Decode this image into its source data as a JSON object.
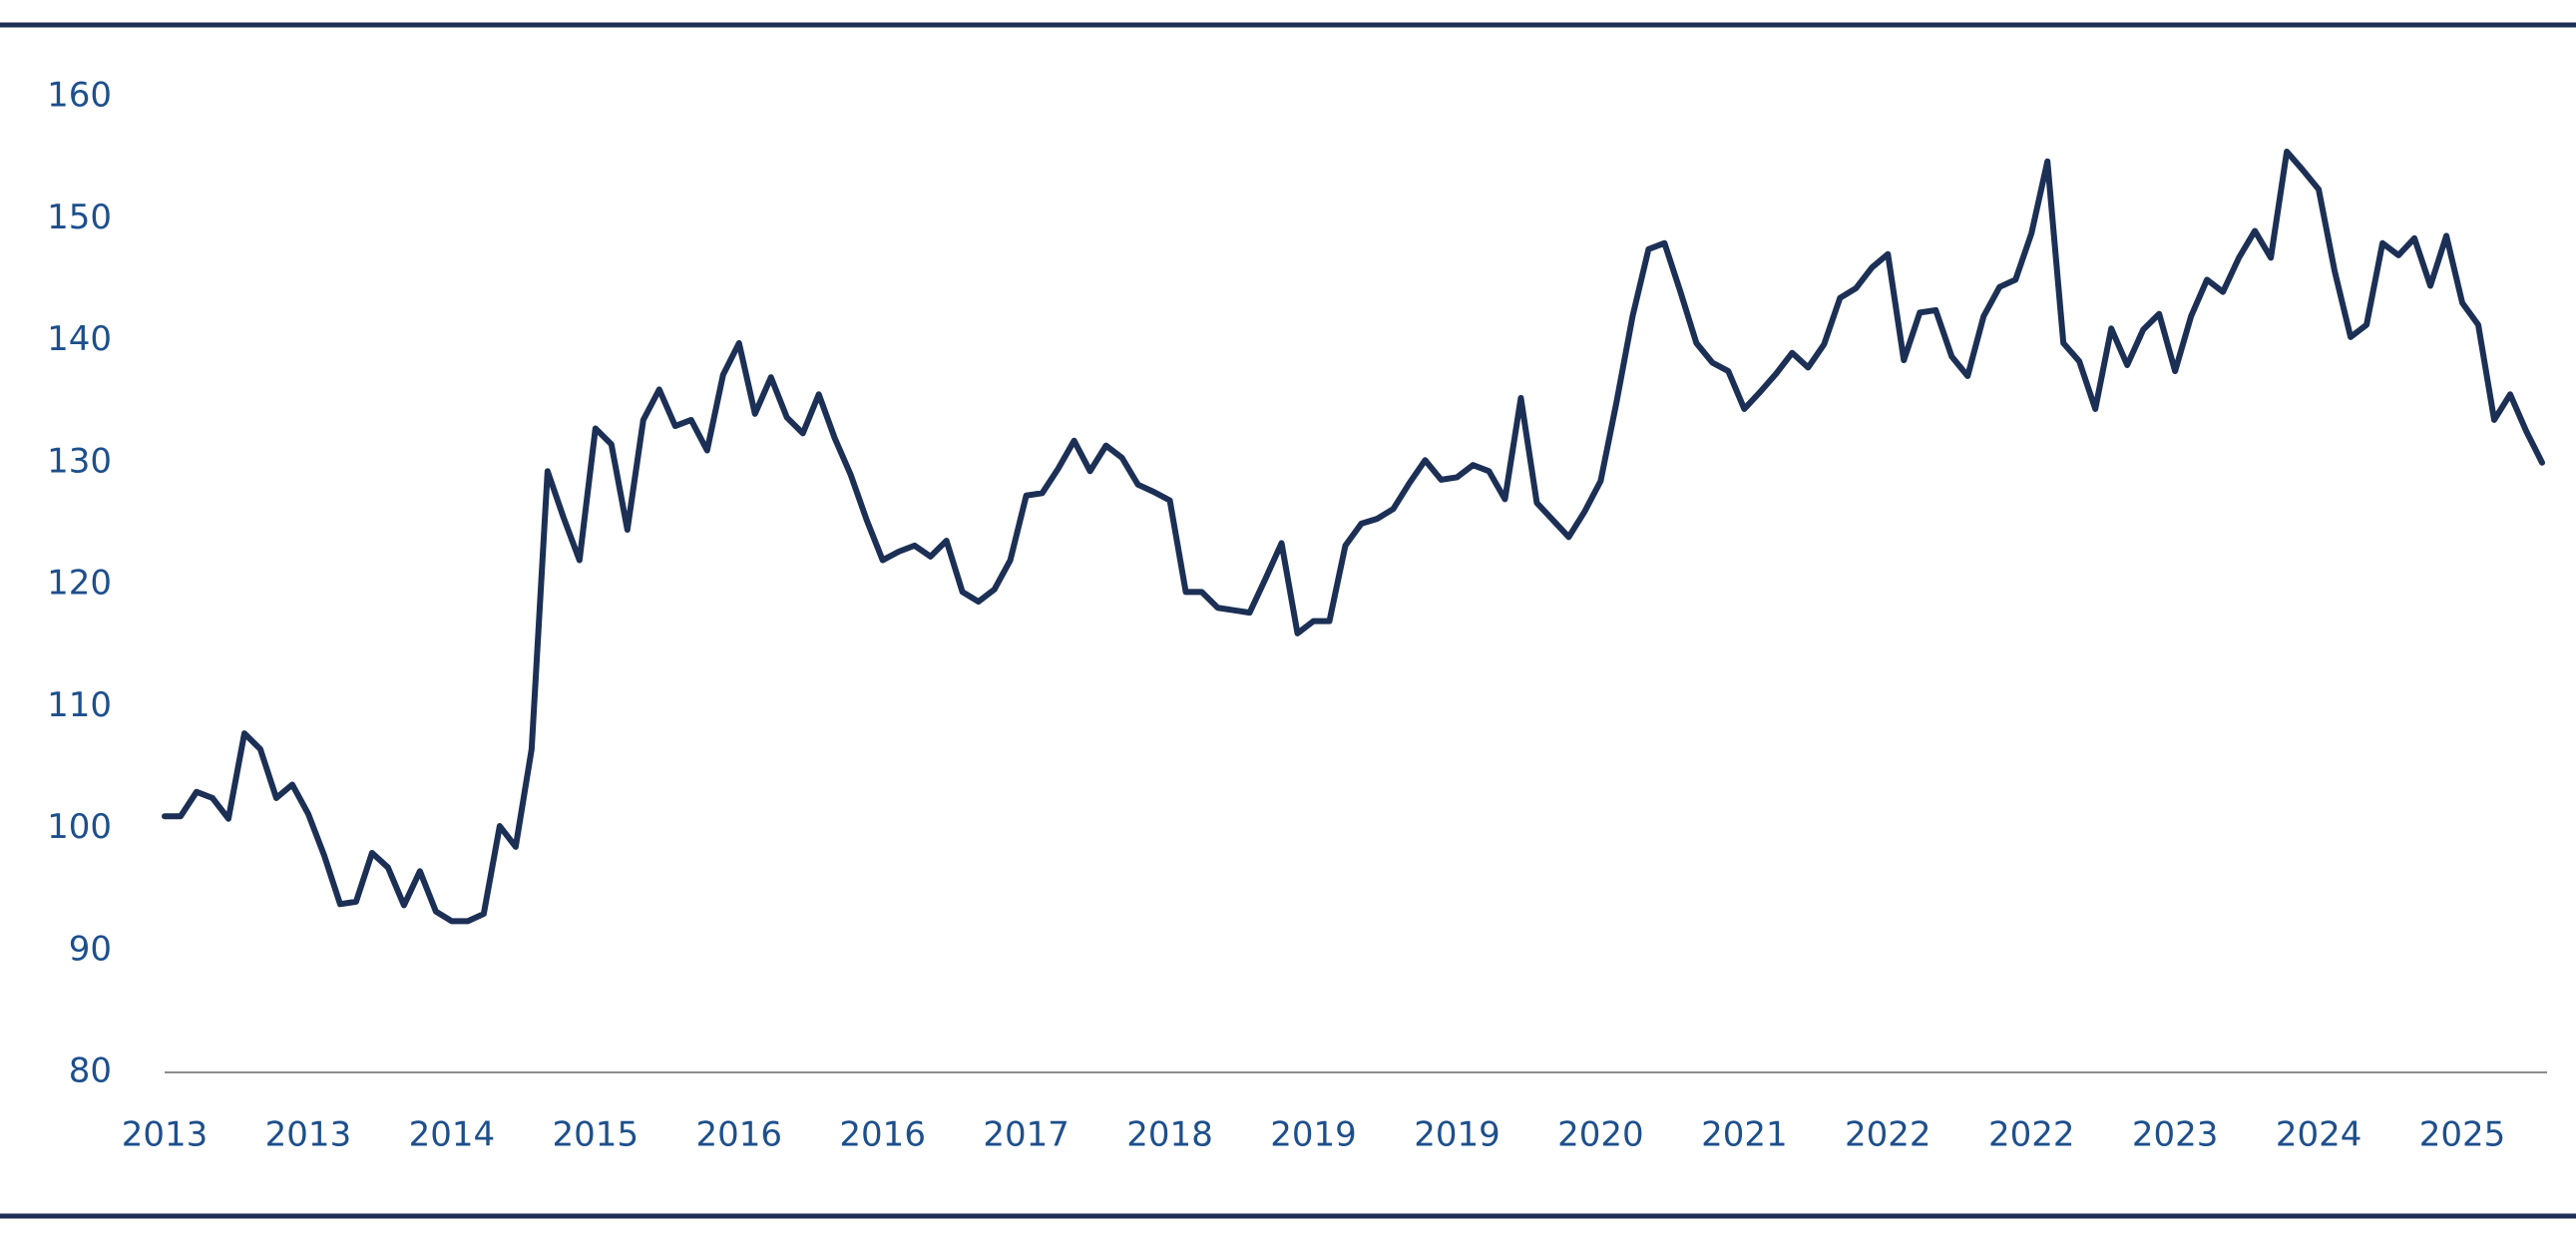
{
  "chart_data": {
    "type": "line",
    "categories": [
      "2013",
      null,
      null,
      null,
      null,
      null,
      null,
      null,
      null,
      "2013",
      null,
      null,
      null,
      null,
      null,
      null,
      null,
      null,
      "2014",
      null,
      null,
      null,
      null,
      null,
      null,
      null,
      null,
      "2015",
      null,
      null,
      null,
      null,
      null,
      null,
      null,
      null,
      "2016",
      null,
      null,
      null,
      null,
      null,
      null,
      null,
      null,
      "2016",
      null,
      null,
      null,
      null,
      null,
      null,
      null,
      null,
      "2017",
      null,
      null,
      null,
      null,
      null,
      null,
      null,
      null,
      "2018",
      null,
      null,
      null,
      null,
      null,
      null,
      null,
      null,
      "2019",
      null,
      null,
      null,
      null,
      null,
      null,
      null,
      null,
      "2019",
      null,
      null,
      null,
      null,
      null,
      null,
      null,
      null,
      "2020",
      null,
      null,
      null,
      null,
      null,
      null,
      null,
      null,
      "2021",
      null,
      null,
      null,
      null,
      null,
      null,
      null,
      null,
      "2022",
      null,
      null,
      null,
      null,
      null,
      null,
      null,
      null,
      "2022",
      null,
      null,
      null,
      null,
      null,
      null,
      null,
      null,
      "2023",
      null,
      null,
      null,
      null,
      null,
      null,
      null,
      null,
      "2024",
      null,
      null,
      null,
      null,
      null,
      null,
      null,
      null,
      "2025",
      null,
      null,
      null,
      null,
      null
    ],
    "values": [
      101,
      101,
      103,
      102.5,
      100.8,
      107.8,
      106.5,
      102.5,
      103.6,
      101.2,
      97.8,
      93.8,
      94,
      98,
      96.8,
      93.7,
      96.5,
      93.2,
      92.4,
      92.4,
      93,
      100.2,
      98.5,
      106.5,
      129.3,
      125.5,
      122,
      132.8,
      131.5,
      124.5,
      133.5,
      136,
      133,
      133.5,
      131,
      137.2,
      139.8,
      134,
      137,
      133.7,
      132.4,
      135.6,
      132,
      129,
      125.3,
      122,
      122.7,
      123.2,
      122.3,
      123.6,
      119.4,
      118.6,
      119.6,
      122,
      127.3,
      127.5,
      129.5,
      131.8,
      129.3,
      131.4,
      130.4,
      128.2,
      127.6,
      126.9,
      119.4,
      119.4,
      118.1,
      117.9,
      117.7,
      120.5,
      123.4,
      116,
      117,
      117,
      123.2,
      125,
      125.4,
      126.2,
      128.3,
      130.2,
      128.6,
      128.8,
      129.8,
      129.3,
      127,
      135.3,
      126.7,
      125.3,
      123.9,
      126,
      128.5,
      135,
      142,
      147.5,
      148,
      144,
      139.8,
      138.2,
      137.5,
      134.4,
      135.8,
      137.3,
      139,
      137.8,
      139.7,
      143.5,
      144.3,
      146,
      147.1,
      138.4,
      142.3,
      142.5,
      138.7,
      137.1,
      142,
      144.4,
      145,
      148.8,
      154.7,
      139.8,
      138.3,
      134.4,
      141,
      138,
      140.9,
      142.2,
      137.5,
      142,
      145,
      144,
      146.8,
      149,
      146.8,
      155.5,
      154,
      152.4,
      145.7,
      140.3,
      141.3,
      148,
      147,
      148.4,
      144.5,
      148.6,
      143.1,
      141.3,
      133.5,
      135.6,
      132.6,
      130
    ],
    "color": "#1c2f55",
    "ylim": [
      80,
      160
    ],
    "yticks": [
      80,
      90,
      100,
      110,
      120,
      130,
      140,
      150,
      160
    ],
    "grid": false
  }
}
